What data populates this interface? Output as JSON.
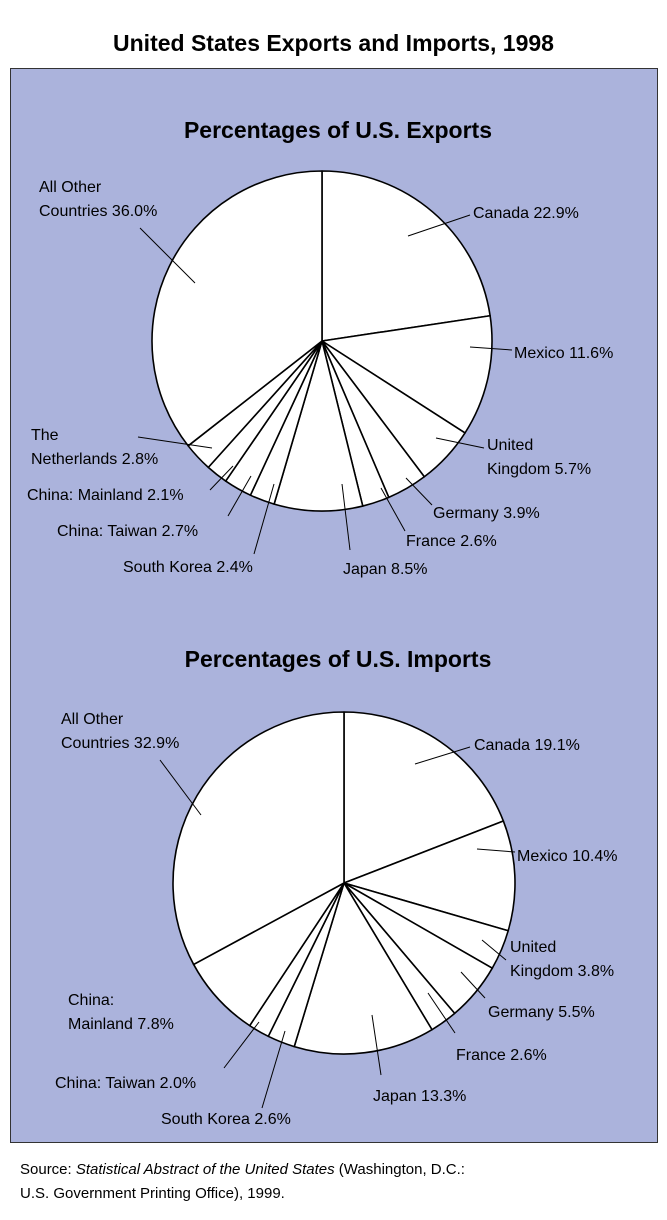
{
  "page": {
    "title": "United States Exports and Imports, 1998",
    "source_prefix": "Source: ",
    "source_title": "Statistical Abstract of the United States",
    "source_rest": " (Washington, D.C.:",
    "source_line2": "U.S. Government Printing Office), 1999."
  },
  "colors": {
    "panel": "#abb3dc",
    "slice": "#ffffff",
    "stroke": "#000000"
  },
  "chart_data": [
    {
      "type": "pie",
      "title": "Percentages of U.S. Exports",
      "slices": [
        {
          "name": "Canada",
          "value": 22.9,
          "label": [
            "Canada 22.9%"
          ]
        },
        {
          "name": "Mexico",
          "value": 11.6,
          "label": [
            "Mexico 11.6%"
          ]
        },
        {
          "name": "United Kingdom",
          "value": 5.7,
          "label": [
            "United",
            "Kingdom 5.7%"
          ]
        },
        {
          "name": "Germany",
          "value": 3.9,
          "label": [
            "Germany 3.9%"
          ]
        },
        {
          "name": "France",
          "value": 2.6,
          "label": [
            "France 2.6%"
          ]
        },
        {
          "name": "Japan",
          "value": 8.5,
          "label": [
            "Japan 8.5%"
          ]
        },
        {
          "name": "South Korea",
          "value": 2.4,
          "label": [
            "South Korea 2.4%"
          ]
        },
        {
          "name": "China: Taiwan",
          "value": 2.7,
          "label": [
            "China: Taiwan 2.7%"
          ]
        },
        {
          "name": "China: Mainland",
          "value": 2.1,
          "label": [
            "China: Mainland 2.1%"
          ]
        },
        {
          "name": "The Netherlands",
          "value": 2.8,
          "label": [
            "The",
            "Netherlands 2.8%"
          ]
        },
        {
          "name": "All Other Countries",
          "value": 36.0,
          "label": [
            "All Other",
            "Countries 36.0%"
          ]
        }
      ]
    },
    {
      "type": "pie",
      "title": "Percentages of U.S. Imports",
      "slices": [
        {
          "name": "Canada",
          "value": 19.1,
          "label": [
            "Canada 19.1%"
          ]
        },
        {
          "name": "Mexico",
          "value": 10.4,
          "label": [
            "Mexico 10.4%"
          ]
        },
        {
          "name": "United Kingdom",
          "value": 3.8,
          "label": [
            "United",
            "Kingdom 3.8%"
          ]
        },
        {
          "name": "Germany",
          "value": 5.5,
          "label": [
            "Germany 5.5%"
          ]
        },
        {
          "name": "France",
          "value": 2.6,
          "label": [
            "France 2.6%"
          ]
        },
        {
          "name": "Japan",
          "value": 13.3,
          "label": [
            "Japan 13.3%"
          ]
        },
        {
          "name": "South Korea",
          "value": 2.6,
          "label": [
            "South Korea 2.6%"
          ]
        },
        {
          "name": "China: Taiwan",
          "value": 2.0,
          "label": [
            "China: Taiwan 2.0%"
          ]
        },
        {
          "name": "China: Mainland",
          "value": 7.8,
          "label": [
            "China:",
            "Mainland 7.8%"
          ]
        },
        {
          "name": "All Other Countries",
          "value": 32.9,
          "label": [
            "All Other",
            "Countries 32.9%"
          ]
        }
      ]
    }
  ]
}
